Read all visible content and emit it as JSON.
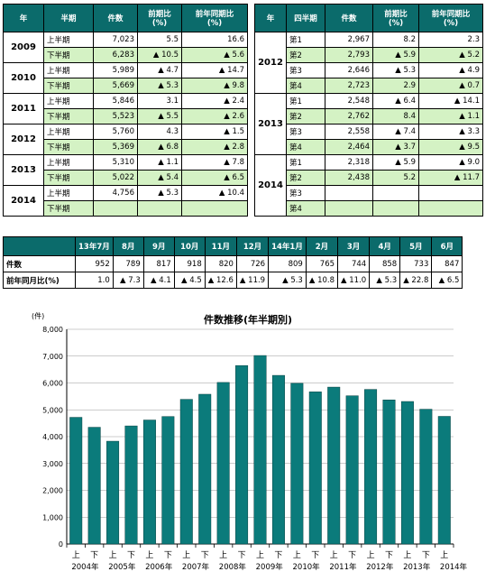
{
  "half_table": {
    "headers": [
      "年",
      "半期",
      "件数",
      "前期比\n(%)",
      "前年同期比\n(%)"
    ],
    "groups": [
      {
        "year": "2009",
        "rows": [
          {
            "period": "上半期",
            "count": "7,023",
            "qoq": "5.5",
            "yoy": "16.6"
          },
          {
            "period": "下半期",
            "count": "6,283",
            "qoq": "▲ 10.5",
            "yoy": "▲ 5.6"
          }
        ]
      },
      {
        "year": "2010",
        "rows": [
          {
            "period": "上半期",
            "count": "5,989",
            "qoq": "▲ 4.7",
            "yoy": "▲ 14.7"
          },
          {
            "period": "下半期",
            "count": "5,669",
            "qoq": "▲ 5.3",
            "yoy": "▲ 9.8"
          }
        ]
      },
      {
        "year": "2011",
        "rows": [
          {
            "period": "上半期",
            "count": "5,846",
            "qoq": "3.1",
            "yoy": "▲ 2.4"
          },
          {
            "period": "下半期",
            "count": "5,523",
            "qoq": "▲ 5.5",
            "yoy": "▲ 2.6"
          }
        ]
      },
      {
        "year": "2012",
        "rows": [
          {
            "period": "上半期",
            "count": "5,760",
            "qoq": "4.3",
            "yoy": "▲ 1.5"
          },
          {
            "period": "下半期",
            "count": "5,369",
            "qoq": "▲ 6.8",
            "yoy": "▲ 2.8"
          }
        ]
      },
      {
        "year": "2013",
        "rows": [
          {
            "period": "上半期",
            "count": "5,310",
            "qoq": "▲ 1.1",
            "yoy": "▲ 7.8"
          },
          {
            "period": "下半期",
            "count": "5,022",
            "qoq": "▲ 5.4",
            "yoy": "▲ 6.5"
          }
        ]
      },
      {
        "year": "2014",
        "rows": [
          {
            "period": "上半期",
            "count": "4,756",
            "qoq": "▲ 5.3",
            "yoy": "▲ 10.4"
          },
          {
            "period": "下半期",
            "count": "",
            "qoq": "",
            "yoy": ""
          }
        ]
      }
    ]
  },
  "quarter_table": {
    "headers": [
      "年",
      "四半期",
      "件数",
      "前期比\n(%)",
      "前年同期比\n(%)"
    ],
    "groups": [
      {
        "year": "2012",
        "rows": [
          {
            "period": "第1",
            "count": "2,967",
            "qoq": "8.2",
            "yoy": "2.3"
          },
          {
            "period": "第2",
            "count": "2,793",
            "qoq": "▲ 5.9",
            "yoy": "▲ 5.2"
          },
          {
            "period": "第3",
            "count": "2,646",
            "qoq": "▲ 5.3",
            "yoy": "▲ 4.9"
          },
          {
            "period": "第4",
            "count": "2,723",
            "qoq": "2.9",
            "yoy": "▲ 0.7"
          }
        ]
      },
      {
        "year": "2013",
        "rows": [
          {
            "period": "第1",
            "count": "2,548",
            "qoq": "▲ 6.4",
            "yoy": "▲ 14.1"
          },
          {
            "period": "第2",
            "count": "2,762",
            "qoq": "8.4",
            "yoy": "▲ 1.1"
          },
          {
            "period": "第3",
            "count": "2,558",
            "qoq": "▲ 7.4",
            "yoy": "▲ 3.3"
          },
          {
            "period": "第4",
            "count": "2,464",
            "qoq": "▲ 3.7",
            "yoy": "▲ 9.5"
          }
        ]
      },
      {
        "year": "2014",
        "rows": [
          {
            "period": "第1",
            "count": "2,318",
            "qoq": "▲ 5.9",
            "yoy": "▲ 9.0"
          },
          {
            "period": "第2",
            "count": "2,438",
            "qoq": "5.2",
            "yoy": "▲ 11.7"
          },
          {
            "period": "第3",
            "count": "",
            "qoq": "",
            "yoy": ""
          },
          {
            "period": "第4",
            "count": "",
            "qoq": "",
            "yoy": ""
          }
        ]
      }
    ]
  },
  "monthly_table": {
    "months": [
      "13年7月",
      "8月",
      "9月",
      "10月",
      "11月",
      "12月",
      "14年1月",
      "2月",
      "3月",
      "4月",
      "5月",
      "6月"
    ],
    "row_labels": [
      "件数",
      "前年同月比(%)"
    ],
    "counts": [
      "952",
      "789",
      "817",
      "918",
      "820",
      "726",
      "809",
      "765",
      "744",
      "858",
      "733",
      "847"
    ],
    "yoy": [
      "1.0",
      "▲ 7.3",
      "▲ 4.1",
      "▲ 4.5",
      "▲ 12.6",
      "▲ 11.9",
      "▲ 5.3",
      "▲ 10.8",
      "▲ 11.0",
      "▲ 5.3",
      "▲ 22.8",
      "▲ 6.5"
    ]
  },
  "chart_data": {
    "type": "bar",
    "title": "件数推移(年半期別)",
    "ylabel": "(件)",
    "ylim": [
      0,
      8000
    ],
    "yticks": [
      "0",
      "1,000",
      "2,000",
      "3,000",
      "4,000",
      "5,000",
      "6,000",
      "7,000",
      "8,000"
    ],
    "categories": [
      "上",
      "下",
      "上",
      "下",
      "上",
      "下",
      "上",
      "下",
      "上",
      "下",
      "上",
      "下",
      "上",
      "下",
      "上",
      "下",
      "上",
      "下",
      "上",
      "下",
      "上"
    ],
    "year_labels": [
      "2004年",
      "2005年",
      "2006年",
      "2007年",
      "2008年",
      "2009年",
      "2010年",
      "2011年",
      "2012年",
      "2013年",
      "2014年"
    ],
    "values": [
      4720,
      4350,
      3830,
      4400,
      4620,
      4750,
      5390,
      5580,
      6020,
      6650,
      7023,
      6283,
      5989,
      5669,
      5846,
      5523,
      5760,
      5369,
      5310,
      5022,
      4756
    ],
    "bar_color": "#0b7b7b",
    "grid": true
  }
}
